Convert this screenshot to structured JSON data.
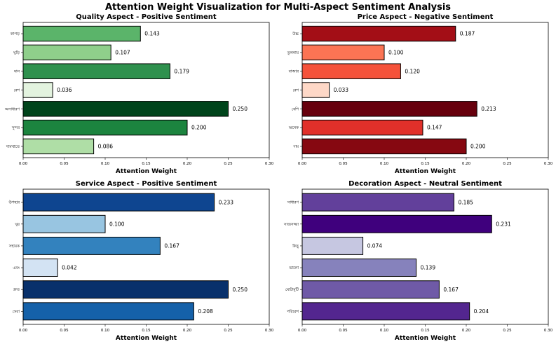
{
  "suptitle": "Attention Weight Visualization for Multi-Aspect Sentiment Analysis",
  "chart_data": [
    {
      "type": "bar",
      "orientation": "horizontal",
      "title": "Quality Aspect - Positive Sentiment",
      "xlabel": "Attention Weight",
      "ylabel": "",
      "xlim": [
        0,
        0.3
      ],
      "xticks": [
        "0.00",
        "0.05",
        "0.10",
        "0.15",
        "0.20",
        "0.25",
        "0.30"
      ],
      "categories": [
        "কাপড়",
        "ঘুড়ি",
        "মান",
        "বেশ",
        "অসাধারণ",
        "সুন্দর",
        "দামখাতে"
      ],
      "values": [
        0.143,
        0.107,
        0.179,
        0.036,
        0.25,
        0.2,
        0.086
      ],
      "labels": [
        "0.143",
        "0.107",
        "0.179",
        "0.036",
        "0.250",
        "0.200",
        "0.086"
      ],
      "colors": [
        "#5bb46a",
        "#8fcf8b",
        "#2f914e",
        "#e3f3df",
        "#00441b",
        "#1c843f",
        "#afdea6"
      ]
    },
    {
      "type": "bar",
      "orientation": "horizontal",
      "title": "Price Aspect - Negative Sentiment",
      "xlabel": "Attention Weight",
      "ylabel": "",
      "xlim": [
        0,
        0.3
      ],
      "xticks": [
        "0.00",
        "0.05",
        "0.10",
        "0.15",
        "0.20",
        "0.25",
        "0.30"
      ],
      "categories": [
        "উচ্চ",
        "তুলনায়",
        "বাজার",
        "বেশ",
        "বেশি",
        "অনেক",
        "দাম"
      ],
      "values": [
        0.187,
        0.1,
        0.12,
        0.033,
        0.213,
        0.147,
        0.2
      ],
      "labels": [
        "0.187",
        "0.100",
        "0.120",
        "0.033",
        "0.213",
        "0.147",
        "0.200"
      ],
      "colors": [
        "#a30e16",
        "#fb7454",
        "#f5523a",
        "#fed8c7",
        "#67000d",
        "#e1302a",
        "#860811"
      ]
    },
    {
      "type": "bar",
      "orientation": "horizontal",
      "title": "Service Aspect - Positive Sentiment",
      "xlabel": "Attention Weight",
      "ylabel": "",
      "xlim": [
        0,
        0.3
      ],
      "xticks": [
        "0.00",
        "0.05",
        "0.10",
        "0.15",
        "0.20",
        "0.25",
        "0.30"
      ],
      "categories": [
        "উপহার",
        "খুব",
        "সহায়ক",
        "এবং",
        "দ্রুত",
        "সেবা"
      ],
      "values": [
        0.233,
        0.1,
        0.167,
        0.042,
        0.25,
        0.208
      ],
      "labels": [
        "0.233",
        "0.100",
        "0.167",
        "0.042",
        "0.250",
        "0.208"
      ],
      "colors": [
        "#0e4590",
        "#98c5e1",
        "#3382be",
        "#d3e3f3",
        "#08306b",
        "#1561a9"
      ]
    },
    {
      "type": "bar",
      "orientation": "horizontal",
      "title": "Decoration Aspect - Neutral Sentiment",
      "xlabel": "Attention Weight",
      "ylabel": "",
      "xlim": [
        0,
        0.3
      ],
      "xticks": [
        "0.00",
        "0.05",
        "0.10",
        "0.15",
        "0.20",
        "0.25",
        "0.30"
      ],
      "categories": [
        "সাধারণ",
        "সাজসজ্জা",
        "কিছু",
        "ভালো",
        "মোটামুটি",
        "পরিবেশ"
      ],
      "values": [
        0.185,
        0.231,
        0.074,
        0.139,
        0.167,
        0.204
      ],
      "labels": [
        "0.185",
        "0.231",
        "0.074",
        "0.139",
        "0.167",
        "0.204"
      ],
      "colors": [
        "#62409b",
        "#3f007d",
        "#c6c7e1",
        "#8682bc",
        "#6f5aa7",
        "#53268f"
      ]
    }
  ]
}
